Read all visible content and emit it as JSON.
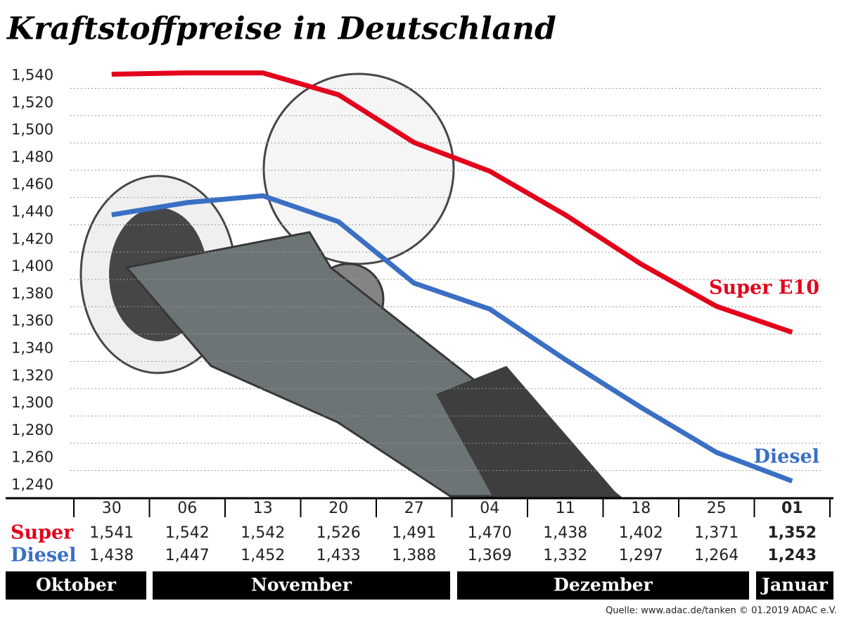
{
  "chart_data": {
    "type": "line",
    "title": "Kraftstoffpreise in Deutschland",
    "categories": [
      "30",
      "06",
      "13",
      "20",
      "27",
      "04",
      "11",
      "18",
      "25",
      "01"
    ],
    "series": [
      {
        "name": "Super E10",
        "table_label": "Super",
        "color": "#e3001b",
        "values": [
          1.541,
          1.542,
          1.542,
          1.526,
          1.491,
          1.47,
          1.438,
          1.402,
          1.371,
          1.352
        ],
        "value_labels": [
          "1,541",
          "1,542",
          "1,542",
          "1,526",
          "1,491",
          "1,470",
          "1,438",
          "1,402",
          "1,371",
          "1,352"
        ]
      },
      {
        "name": "Diesel",
        "table_label": "Diesel",
        "color": "#3a6fc4",
        "values": [
          1.438,
          1.447,
          1.452,
          1.433,
          1.388,
          1.369,
          1.332,
          1.297,
          1.264,
          1.243
        ],
        "value_labels": [
          "1,438",
          "1,447",
          "1,452",
          "1,433",
          "1,388",
          "1,369",
          "1,332",
          "1,297",
          "1,264",
          "1,243"
        ]
      }
    ],
    "months": [
      "Oktober",
      "November",
      "Dezember",
      "Januar"
    ],
    "ylim": [
      1.232,
      1.549
    ],
    "yticks": [
      {
        "value": 1.24,
        "label": "1,240"
      },
      {
        "value": 1.26,
        "label": "1,260"
      },
      {
        "value": 1.28,
        "label": "1,280"
      },
      {
        "value": 1.3,
        "label": "1,300"
      },
      {
        "value": 1.32,
        "label": "1,320"
      },
      {
        "value": 1.34,
        "label": "1,340"
      },
      {
        "value": 1.36,
        "label": "1,360"
      },
      {
        "value": 1.38,
        "label": "1,380"
      },
      {
        "value": 1.4,
        "label": "1,400"
      },
      {
        "value": 1.42,
        "label": "1,420"
      },
      {
        "value": 1.44,
        "label": "1,440"
      },
      {
        "value": 1.46,
        "label": "1,460"
      },
      {
        "value": 1.48,
        "label": "1,480"
      },
      {
        "value": 1.5,
        "label": "1,500"
      },
      {
        "value": 1.52,
        "label": "1,520"
      },
      {
        "value": 1.54,
        "label": "1,540"
      }
    ],
    "grid": true,
    "source": "Quelle: www.adac.de/tanken   © 01.2019  ADAC e.V."
  }
}
